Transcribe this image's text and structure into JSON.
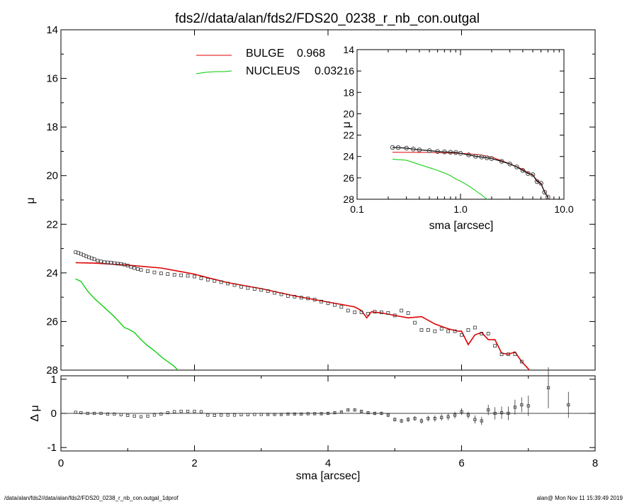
{
  "title": "fds2//data/alan/fds2/FDS20_0238_r_nb_con.outgal",
  "footer_left": "/data/alan/fds2//data/alan/fds2/FDS20_0238_r_nb_con.outgal_1dprof",
  "footer_right": "alan@  Mon Nov 11 15:39:49 2019",
  "colors": {
    "bulge": "#e00000",
    "nucleus": "#00cc00",
    "data": "#333333",
    "axes": "#000000"
  },
  "legend": [
    {
      "label": "BULGE",
      "value": "0.968",
      "color": "#ff0000"
    },
    {
      "label": "NUCLEUS",
      "value": "0.032",
      "color": "#00cc00"
    }
  ],
  "chart_data": [
    {
      "type": "scatter",
      "panel": "main",
      "xlabel": "",
      "ylabel": "μ",
      "xlim": [
        0,
        8
      ],
      "ylim": [
        28,
        14
      ],
      "yticks": [
        "14",
        "16",
        "18",
        "20",
        "22",
        "24",
        "26",
        "28"
      ],
      "observed": {
        "x": [
          0.22,
          0.26,
          0.3,
          0.34,
          0.38,
          0.42,
          0.46,
          0.5,
          0.55,
          0.6,
          0.65,
          0.7,
          0.75,
          0.8,
          0.85,
          0.9,
          0.95,
          1.0,
          1.05,
          1.1,
          1.15,
          1.2,
          1.3,
          1.4,
          1.5,
          1.6,
          1.7,
          1.8,
          1.9,
          2.0,
          2.1,
          2.2,
          2.3,
          2.4,
          2.5,
          2.6,
          2.7,
          2.8,
          2.9,
          3.0,
          3.1,
          3.2,
          3.3,
          3.4,
          3.5,
          3.6,
          3.7,
          3.8,
          3.9,
          4.0,
          4.1,
          4.2,
          4.3,
          4.4,
          4.5,
          4.6,
          4.7,
          4.8,
          4.9,
          5.0,
          5.1,
          5.2,
          5.3,
          5.4,
          5.5,
          5.6,
          5.7,
          5.8,
          5.9,
          6.0,
          6.1,
          6.2,
          6.3,
          6.4,
          6.5,
          6.6,
          6.7,
          6.8,
          6.9
        ],
        "y": [
          23.15,
          23.18,
          23.22,
          23.27,
          23.32,
          23.36,
          23.4,
          23.44,
          23.5,
          23.53,
          23.56,
          23.57,
          23.58,
          23.6,
          23.62,
          23.63,
          23.66,
          23.7,
          23.75,
          23.8,
          23.84,
          23.88,
          23.93,
          23.98,
          24.02,
          24.05,
          24.08,
          24.1,
          24.12,
          24.15,
          24.22,
          24.28,
          24.33,
          24.38,
          24.44,
          24.5,
          24.57,
          24.62,
          24.66,
          24.7,
          24.75,
          24.82,
          24.88,
          24.95,
          24.98,
          25.02,
          25.05,
          25.1,
          25.18,
          25.25,
          25.32,
          25.4,
          25.55,
          25.62,
          25.62,
          25.68,
          25.6,
          25.62,
          25.65,
          25.75,
          25.55,
          25.65,
          26.05,
          26.35,
          26.35,
          26.4,
          26.3,
          26.4,
          26.4,
          26.55,
          26.35,
          26.25,
          26.5,
          26.5,
          27.0,
          27.35,
          27.35,
          27.35,
          27.65
        ]
      },
      "bulge_model": {
        "x": [
          0.22,
          0.5,
          1.0,
          1.5,
          2.0,
          2.2,
          2.5,
          3.0,
          3.5,
          4.0,
          4.2,
          4.4,
          4.5,
          4.58,
          4.65,
          4.8,
          5.0,
          5.2,
          5.4,
          5.6,
          5.8,
          5.95,
          6.0,
          6.1,
          6.2,
          6.3,
          6.4,
          6.5,
          6.6,
          6.7,
          6.8,
          6.9,
          7.0,
          7.1
        ],
        "y": [
          23.58,
          23.6,
          23.68,
          23.8,
          24.05,
          24.2,
          24.4,
          24.65,
          24.95,
          25.2,
          25.3,
          25.4,
          25.55,
          25.85,
          25.6,
          25.65,
          25.75,
          25.85,
          25.8,
          26.1,
          26.3,
          26.4,
          26.4,
          26.95,
          26.55,
          26.45,
          26.75,
          26.75,
          27.3,
          27.35,
          27.25,
          27.65,
          27.95,
          28.3
        ]
      },
      "nucleus_model": {
        "x": [
          0.22,
          0.3,
          0.4,
          0.5,
          0.6,
          0.7,
          0.8,
          0.9,
          0.95,
          1.0,
          1.1,
          1.2,
          1.3,
          1.4,
          1.5,
          1.6,
          1.7,
          1.75
        ],
        "y": [
          24.25,
          24.35,
          24.75,
          25.05,
          25.3,
          25.55,
          25.8,
          26.1,
          26.25,
          26.3,
          26.45,
          26.75,
          27.0,
          27.2,
          27.45,
          27.65,
          27.85,
          28.0
        ]
      }
    },
    {
      "type": "scatter",
      "panel": "inset",
      "xlabel": "sma [arcsec]",
      "ylabel": "μ",
      "xscale": "log",
      "xlim": [
        0.1,
        10.0
      ],
      "ylim": [
        28,
        14
      ],
      "xticks": [
        "0.1",
        "1.0",
        "10.0"
      ],
      "yticks": [
        "14",
        "16",
        "18",
        "20",
        "22",
        "24",
        "26",
        "28"
      ],
      "observed": {
        "x": [
          0.22,
          0.25,
          0.3,
          0.35,
          0.4,
          0.5,
          0.6,
          0.7,
          0.8,
          0.9,
          1.0,
          1.2,
          1.4,
          1.6,
          1.8,
          2.0,
          2.5,
          3.0,
          3.5,
          4.0,
          4.5,
          5.0,
          5.5,
          6.0,
          6.5,
          7.0
        ],
        "y": [
          23.15,
          23.17,
          23.22,
          23.3,
          23.38,
          23.45,
          23.53,
          23.57,
          23.6,
          23.63,
          23.7,
          23.85,
          23.98,
          24.05,
          24.12,
          24.2,
          24.45,
          24.7,
          24.98,
          25.3,
          25.6,
          25.7,
          26.35,
          26.5,
          27.35,
          27.8
        ]
      },
      "bulge_model": {
        "x": [
          0.22,
          0.5,
          1.0,
          1.5,
          2.0,
          3.0,
          4.0,
          5.0,
          6.0,
          7.0
        ],
        "y": [
          23.6,
          23.62,
          23.7,
          23.82,
          24.05,
          24.68,
          25.2,
          25.78,
          26.6,
          27.9
        ]
      },
      "nucleus_model": {
        "x": [
          0.22,
          0.3,
          0.4,
          0.5,
          0.6,
          0.7,
          0.8,
          0.9,
          1.0,
          1.2,
          1.4,
          1.6,
          1.8
        ],
        "y": [
          24.25,
          24.35,
          24.75,
          25.05,
          25.3,
          25.55,
          25.8,
          26.1,
          26.3,
          26.75,
          27.2,
          27.6,
          28.0
        ]
      }
    },
    {
      "type": "scatter",
      "panel": "residual",
      "xlabel": "sma [arcsec]",
      "ylabel": "Δ μ",
      "xlim": [
        0,
        8
      ],
      "ylim": [
        -1.1,
        1.1
      ],
      "xticks": [
        "0",
        "2",
        "4",
        "6",
        "8"
      ],
      "yticks": [
        "1",
        "0",
        "-1"
      ],
      "points": {
        "x": [
          0.22,
          0.3,
          0.4,
          0.5,
          0.6,
          0.7,
          0.8,
          0.9,
          1.0,
          1.1,
          1.2,
          1.3,
          1.4,
          1.5,
          1.6,
          1.7,
          1.8,
          1.9,
          2.0,
          2.1,
          2.2,
          2.3,
          2.4,
          2.5,
          2.6,
          2.7,
          2.8,
          2.9,
          3.0,
          3.1,
          3.2,
          3.3,
          3.4,
          3.5,
          3.6,
          3.7,
          3.8,
          3.9,
          4.0,
          4.1,
          4.2,
          4.3,
          4.4,
          4.5,
          4.6,
          4.7,
          4.8,
          4.9,
          5.0,
          5.1,
          5.2,
          5.3,
          5.4,
          5.5,
          5.6,
          5.7,
          5.8,
          5.9,
          6.0,
          6.1,
          6.2,
          6.3,
          6.4,
          6.5,
          6.6,
          6.7,
          6.8,
          6.9,
          7.0,
          7.3,
          7.6
        ],
        "y": [
          0.03,
          0.02,
          0.0,
          0.0,
          0.0,
          -0.02,
          -0.02,
          -0.04,
          -0.06,
          -0.08,
          -0.1,
          -0.08,
          -0.05,
          -0.02,
          0.02,
          0.05,
          0.06,
          0.06,
          0.06,
          0.05,
          -0.05,
          -0.06,
          -0.05,
          -0.05,
          -0.05,
          -0.04,
          -0.04,
          -0.03,
          -0.03,
          -0.03,
          -0.03,
          -0.03,
          -0.02,
          -0.02,
          -0.02,
          -0.01,
          -0.01,
          -0.01,
          0.0,
          0.02,
          0.04,
          0.1,
          0.1,
          0.06,
          0.02,
          0.0,
          0.0,
          -0.05,
          -0.18,
          -0.22,
          -0.18,
          -0.15,
          -0.22,
          -0.15,
          -0.15,
          -0.12,
          -0.1,
          -0.05,
          0.05,
          -0.05,
          -0.18,
          -0.22,
          0.1,
          0.0,
          0.02,
          0.0,
          0.18,
          0.25,
          0.22,
          0.75,
          0.25
        ],
        "err": [
          0.01,
          0.01,
          0.01,
          0.01,
          0.01,
          0.01,
          0.01,
          0.01,
          0.01,
          0.01,
          0.01,
          0.01,
          0.01,
          0.01,
          0.01,
          0.01,
          0.01,
          0.01,
          0.01,
          0.01,
          0.01,
          0.01,
          0.01,
          0.01,
          0.01,
          0.01,
          0.01,
          0.01,
          0.01,
          0.02,
          0.02,
          0.02,
          0.02,
          0.02,
          0.02,
          0.02,
          0.02,
          0.03,
          0.03,
          0.03,
          0.03,
          0.04,
          0.04,
          0.04,
          0.04,
          0.05,
          0.05,
          0.06,
          0.06,
          0.06,
          0.07,
          0.07,
          0.08,
          0.08,
          0.09,
          0.09,
          0.1,
          0.1,
          0.1,
          0.1,
          0.12,
          0.12,
          0.15,
          0.18,
          0.18,
          0.2,
          0.22,
          0.22,
          0.3,
          0.6,
          0.38
        ]
      }
    }
  ]
}
